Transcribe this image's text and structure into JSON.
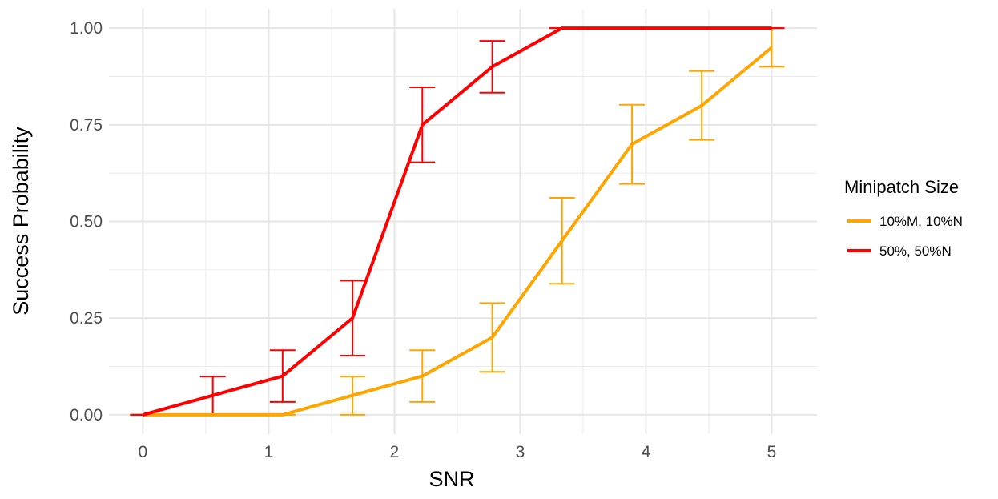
{
  "chart_data": {
    "type": "line",
    "xlabel": "SNR",
    "ylabel": "Success Probability",
    "xlim": [
      -0.27,
      5.36
    ],
    "ylim": [
      -0.05,
      1.05
    ],
    "x_ticks": [
      0,
      1,
      2,
      3,
      4,
      5
    ],
    "x_tick_labels": [
      "0",
      "1",
      "2",
      "3",
      "4",
      "5"
    ],
    "y_ticks": [
      0,
      0.25,
      0.5,
      0.75,
      1
    ],
    "y_tick_labels": [
      "0.00",
      "0.25",
      "0.50",
      "0.75",
      "1.00"
    ],
    "grid": true,
    "legend": {
      "title": "Minipatch Size",
      "position": "right"
    },
    "x": [
      0,
      0.556,
      1.111,
      1.667,
      2.222,
      2.778,
      3.333,
      3.889,
      4.444,
      5.0
    ],
    "series": [
      {
        "name": "10%M, 10%N",
        "color": "#FFA500",
        "values": [
          0,
          0,
          0,
          0.05,
          0.1,
          0.2,
          0.45,
          0.7,
          0.8,
          0.95
        ],
        "error_low": [
          0,
          0,
          0,
          0,
          0.033,
          0.111,
          0.339,
          0.597,
          0.711,
          0.9
        ],
        "error_high": [
          0,
          0,
          0,
          0.099,
          0.167,
          0.289,
          0.561,
          0.802,
          0.889,
          1.0
        ]
      },
      {
        "name": "50%, 50%N",
        "color": "#FF0000",
        "values": [
          0,
          0.05,
          0.1,
          0.25,
          0.75,
          0.9,
          1.0,
          1.0,
          1.0,
          1.0
        ],
        "error_low": [
          0,
          0,
          0.033,
          0.153,
          0.653,
          0.833,
          1.0,
          1.0,
          1.0,
          1.0
        ],
        "error_high": [
          0,
          0.099,
          0.167,
          0.347,
          0.847,
          0.967,
          1.0,
          1.0,
          1.0,
          1.0
        ]
      }
    ]
  }
}
